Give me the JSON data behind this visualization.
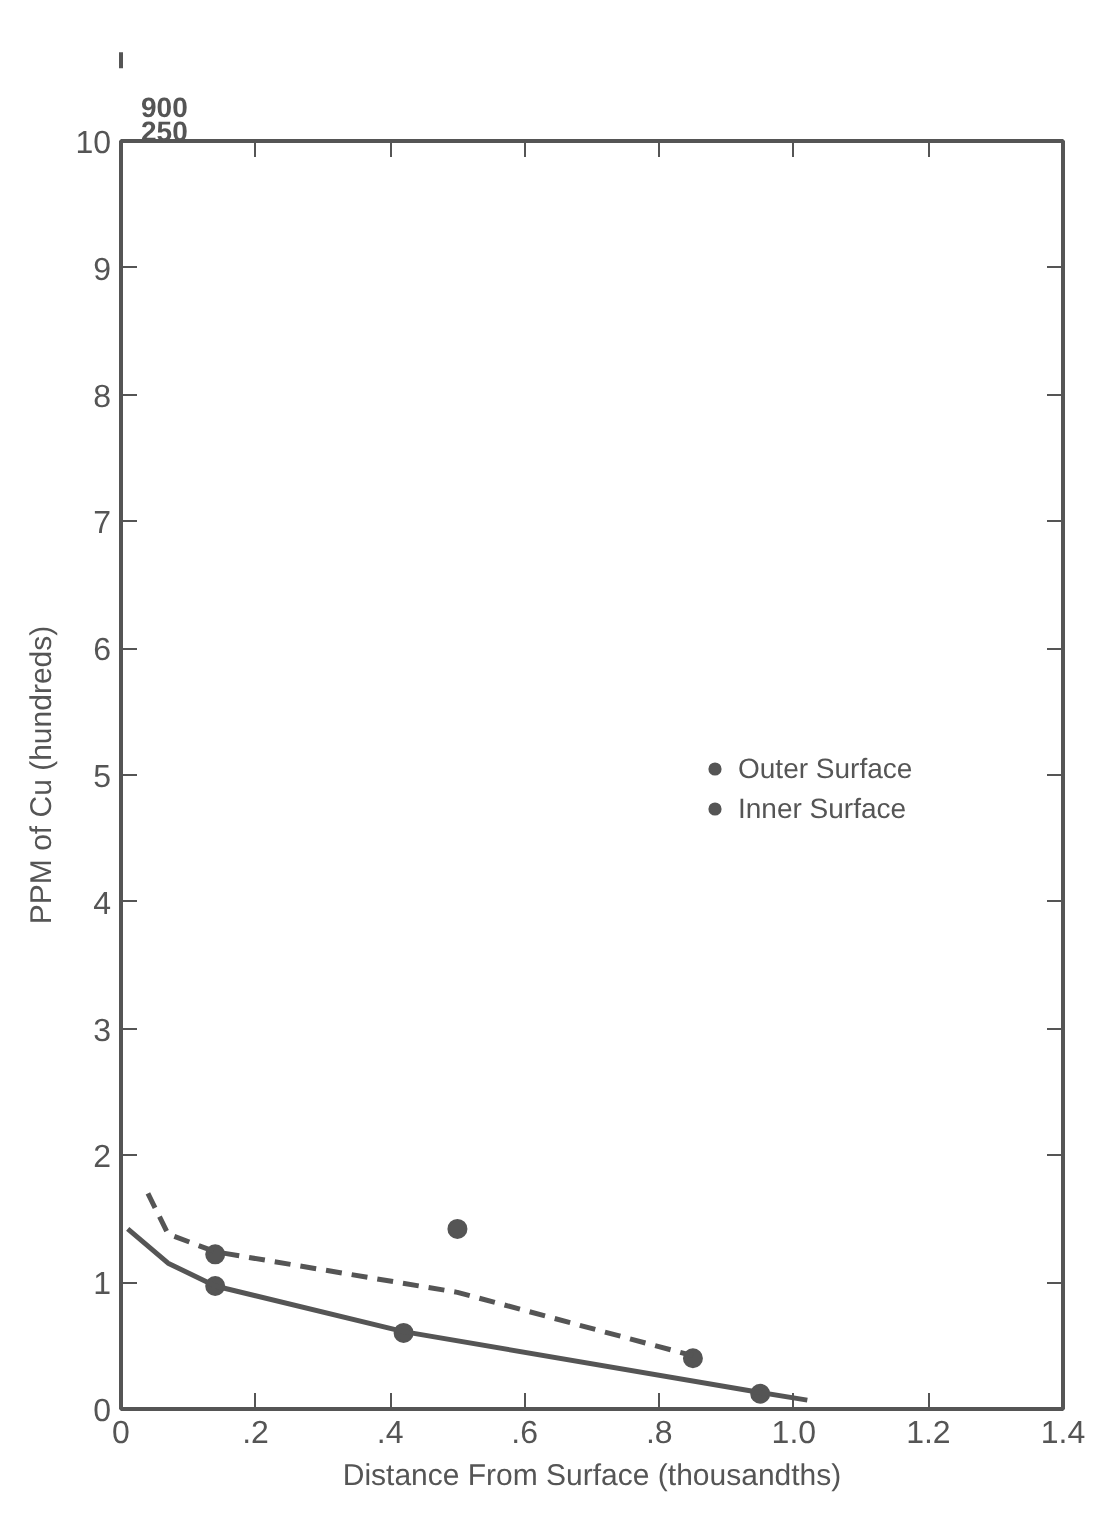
{
  "chart_data": {
    "type": "scatter",
    "xlabel": "Distance From Surface (thousandths)",
    "ylabel": "PPM of Cu (hundreds)",
    "annotations": [
      "900",
      "250"
    ],
    "xlim": [
      0,
      1.4
    ],
    "ylim": [
      0,
      10
    ],
    "xticks": [
      0,
      {
        "value": 0.2,
        "label": ".2"
      },
      {
        "value": 0.4,
        "label": ".4"
      },
      {
        "value": 0.6,
        "label": ".6"
      },
      {
        "value": 0.8,
        "label": ".8"
      },
      {
        "value": 1.0,
        "label": "1.0"
      },
      1.2,
      1.4
    ],
    "yticks": [
      0,
      1,
      2,
      3,
      4,
      5,
      6,
      7,
      8,
      9,
      10
    ],
    "grid": false,
    "legend": "right",
    "marker": "circle",
    "series": [
      {
        "name": "Outer Surface",
        "color": "#555555",
        "x": [
          0.14,
          0.5,
          0.85
        ],
        "values": [
          1.22,
          1.42,
          0.4
        ]
      },
      {
        "name": "Inner Surface",
        "color": "#555555",
        "x": [
          0.14,
          0.42,
          0.95
        ],
        "values": [
          0.97,
          0.6,
          0.12
        ]
      },
      {
        "type": "line",
        "color": "#555555",
        "line_style": "dashed",
        "marker": "none",
        "x": [
          0.04,
          0.07,
          0.14,
          0.5,
          0.85
        ],
        "values": [
          1.7,
          1.38,
          1.24,
          0.92,
          0.42
        ]
      },
      {
        "type": "line",
        "color": "#555555",
        "line_style": "solid",
        "marker": "none",
        "x": [
          0.01,
          0.07,
          0.14,
          0.42,
          0.95,
          1.02
        ],
        "values": [
          1.42,
          1.15,
          0.97,
          0.61,
          0.13,
          0.07
        ]
      }
    ]
  }
}
